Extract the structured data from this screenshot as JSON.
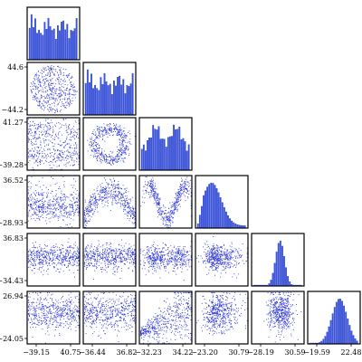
{
  "chart_data": {
    "type": "scatter",
    "subtype": "corner-plot",
    "n_dimensions": 6,
    "title": "",
    "colors": {
      "marker": "#2b35d6",
      "hist_fill": "#3b58e0",
      "hist_edge": "#1a2bbf",
      "frame": "#000000"
    },
    "dimensions": [
      {
        "range": [
          -39.15,
          40.75
        ],
        "hist_shape": "uniform",
        "x_ticks": [
          "−39.15",
          "40.75"
        ],
        "y_ticks": []
      },
      {
        "range": [
          -44.2,
          44.6
        ],
        "hist_shape": "uniform",
        "x_ticks": [
          "−36.44",
          "36.82"
        ],
        "y_ticks": [
          "44.6",
          "−44.2"
        ]
      },
      {
        "range": [
          -39.28,
          41.27
        ],
        "hist_shape": "bimodal",
        "x_ticks": [
          "−32.23",
          "34.22"
        ],
        "y_ticks": [
          "41.27",
          "−39.28"
        ]
      },
      {
        "range": [
          -28.93,
          36.52
        ],
        "hist_shape": "skewed",
        "x_ticks": [
          "−23.20",
          "30.79"
        ],
        "y_ticks": [
          "36.52",
          "−28.93"
        ]
      },
      {
        "range": [
          -34.43,
          36.83
        ],
        "hist_shape": "peaked",
        "x_ticks": [
          "−28.19",
          "30.59"
        ],
        "y_ticks": [
          "36.83",
          "−34.43"
        ]
      },
      {
        "range": [
          -24.05,
          26.94
        ],
        "hist_shape": "normal",
        "x_ticks": [
          "−19.59",
          "22.48"
        ],
        "y_ticks": [
          "26.94",
          "−24.05"
        ]
      }
    ],
    "grid": false,
    "legend": "none"
  }
}
